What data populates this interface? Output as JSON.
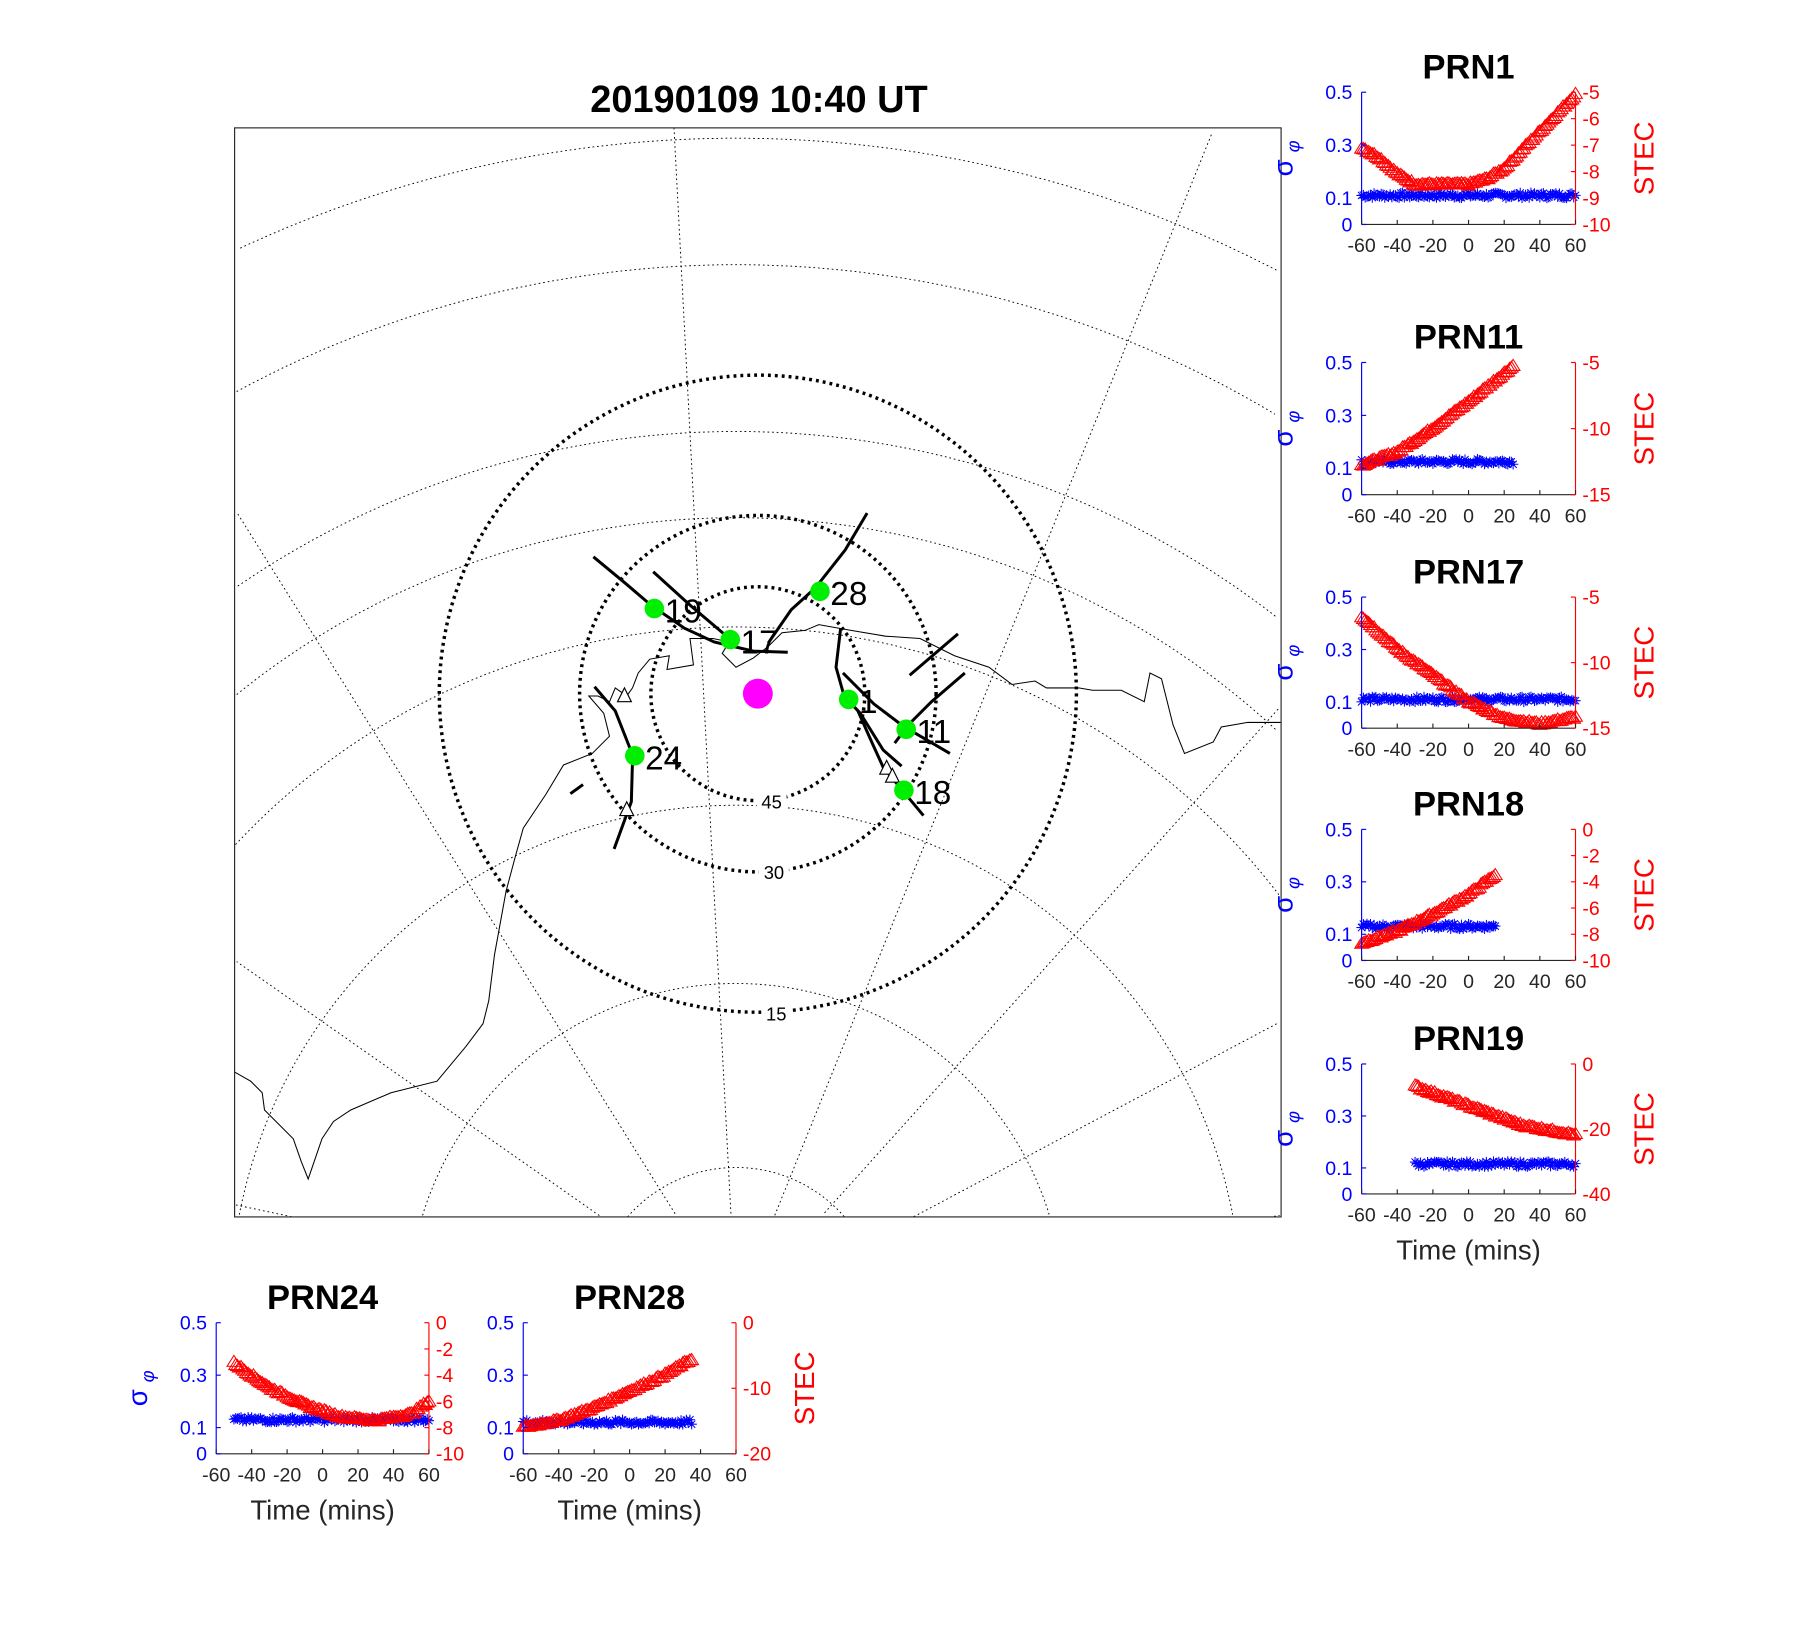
{
  "title": "20190109 10:40 UT",
  "map": {
    "elevation_labels": [
      "45",
      "30",
      "15"
    ],
    "satellites": [
      {
        "prn": "1"
      },
      {
        "prn": "11"
      },
      {
        "prn": "17"
      },
      {
        "prn": "18"
      },
      {
        "prn": "19"
      },
      {
        "prn": "24"
      },
      {
        "prn": "28"
      }
    ],
    "colors": {
      "satellite": "#00ee00",
      "station": "#ff00ff",
      "track": "#000000"
    }
  },
  "chart_data": [
    {
      "type": "line",
      "title": "PRN1",
      "xlabel": "",
      "left_ylabel": {
        "sigma": "σ",
        "phi": "φ"
      },
      "right_ylabel": "STEC",
      "xlim": [
        -60,
        60
      ],
      "xticks": [
        "-60",
        "-40",
        "-20",
        "0",
        "20",
        "40",
        "60"
      ],
      "xtick_values": [
        -60,
        -40,
        -20,
        0,
        20,
        40,
        60
      ],
      "left_ylim": [
        0,
        0.5
      ],
      "left_ticks": [
        "0",
        "0.1",
        "0.3",
        "0.5"
      ],
      "left_tick_values": [
        0,
        0.1,
        0.3,
        0.5
      ],
      "right_ylim": [
        -10,
        -5
      ],
      "right_ticks": [
        "-5",
        "-6",
        "-7",
        "-8",
        "-9",
        "-10"
      ],
      "right_tick_values": [
        -5,
        -6,
        -7,
        -8,
        -9,
        -10
      ],
      "sigma": {
        "t_range": [
          -60,
          60
        ],
        "value": 0.11
      },
      "stec": [
        [
          -60,
          -7.1
        ],
        [
          -50,
          -7.5
        ],
        [
          -40,
          -8.1
        ],
        [
          -30,
          -8.5
        ],
        [
          -20,
          -8.5
        ],
        [
          0,
          -8.5
        ],
        [
          10,
          -8.3
        ],
        [
          20,
          -7.9
        ],
        [
          30,
          -7.2
        ],
        [
          40,
          -6.5
        ],
        [
          50,
          -5.8
        ],
        [
          60,
          -5.1
        ]
      ]
    },
    {
      "type": "line",
      "title": "PRN11",
      "xlabel": "",
      "left_ylabel": {
        "sigma": "σ",
        "phi": "φ"
      },
      "right_ylabel": "STEC",
      "xlim": [
        -60,
        60
      ],
      "xticks": [
        "-60",
        "-40",
        "-20",
        "0",
        "20",
        "40",
        "60"
      ],
      "xtick_values": [
        -60,
        -40,
        -20,
        0,
        20,
        40,
        60
      ],
      "left_ylim": [
        0,
        0.5
      ],
      "left_ticks": [
        "0",
        "0.1",
        "0.3",
        "0.5"
      ],
      "left_tick_values": [
        0,
        0.1,
        0.3,
        0.5
      ],
      "right_ylim": [
        -15,
        -5
      ],
      "right_ticks": [
        "-5",
        "-10",
        "-15"
      ],
      "right_tick_values": [
        -5,
        -10,
        -15
      ],
      "sigma": {
        "t_range": [
          -60,
          25
        ],
        "value": 0.125
      },
      "stec": [
        [
          -60,
          -12.8
        ],
        [
          -40,
          -11.8
        ],
        [
          -20,
          -10
        ],
        [
          0,
          -8
        ],
        [
          25,
          -5.3
        ]
      ]
    },
    {
      "type": "line",
      "title": "PRN17",
      "xlabel": "",
      "left_ylabel": {
        "sigma": "σ",
        "phi": "φ"
      },
      "right_ylabel": "STEC",
      "xlim": [
        -60,
        60
      ],
      "xticks": [
        "-60",
        "-40",
        "-20",
        "0",
        "20",
        "40",
        "60"
      ],
      "xtick_values": [
        -60,
        -40,
        -20,
        0,
        20,
        40,
        60
      ],
      "left_ylim": [
        0,
        0.5
      ],
      "left_ticks": [
        "0",
        "0.1",
        "0.3",
        "0.5"
      ],
      "left_tick_values": [
        0,
        0.1,
        0.3,
        0.5
      ],
      "right_ylim": [
        -15,
        -5
      ],
      "right_ticks": [
        "-5",
        "-10",
        "-15"
      ],
      "right_tick_values": [
        -5,
        -10,
        -15
      ],
      "sigma": {
        "t_range": [
          -60,
          60
        ],
        "value": 0.11
      },
      "stec": [
        [
          -60,
          -6.5
        ],
        [
          -40,
          -9
        ],
        [
          -20,
          -11
        ],
        [
          0,
          -13
        ],
        [
          20,
          -14.3
        ],
        [
          40,
          -14.7
        ],
        [
          60,
          -14.2
        ]
      ]
    },
    {
      "type": "line",
      "title": "PRN18",
      "xlabel": "",
      "left_ylabel": {
        "sigma": "σ",
        "phi": "φ"
      },
      "right_ylabel": "STEC",
      "xlim": [
        -60,
        60
      ],
      "xticks": [
        "-60",
        "-40",
        "-20",
        "0",
        "20",
        "40",
        "60"
      ],
      "xtick_values": [
        -60,
        -40,
        -20,
        0,
        20,
        40,
        60
      ],
      "left_ylim": [
        0,
        0.5
      ],
      "left_ticks": [
        "0",
        "0.1",
        "0.3",
        "0.5"
      ],
      "left_tick_values": [
        0,
        0.1,
        0.3,
        0.5
      ],
      "right_ylim": [
        -10,
        0
      ],
      "right_ticks": [
        "0",
        "-2",
        "-4",
        "-6",
        "-8",
        "-10"
      ],
      "right_tick_values": [
        0,
        -2,
        -4,
        -6,
        -8,
        -10
      ],
      "sigma": {
        "t_range": [
          -60,
          15
        ],
        "value": 0.13
      },
      "stec": [
        [
          -60,
          -8.7
        ],
        [
          -40,
          -7.8
        ],
        [
          -20,
          -6.5
        ],
        [
          0,
          -5
        ],
        [
          15,
          -3.5
        ]
      ]
    },
    {
      "type": "line",
      "title": "PRN19",
      "xlabel": "Time (mins)",
      "left_ylabel": {
        "sigma": "σ",
        "phi": "φ"
      },
      "right_ylabel": "STEC",
      "xlim": [
        -60,
        60
      ],
      "xticks": [
        "-60",
        "-40",
        "-20",
        "0",
        "20",
        "40",
        "60"
      ],
      "xtick_values": [
        -60,
        -40,
        -20,
        0,
        20,
        40,
        60
      ],
      "left_ylim": [
        0,
        0.5
      ],
      "left_ticks": [
        "0",
        "0.1",
        "0.3",
        "0.5"
      ],
      "left_tick_values": [
        0,
        0.1,
        0.3,
        0.5
      ],
      "right_ylim": [
        -40,
        0
      ],
      "right_ticks": [
        "0",
        "-20",
        "-40"
      ],
      "right_tick_values": [
        0,
        -20,
        -40
      ],
      "sigma": {
        "t_range": [
          -30,
          60
        ],
        "value": 0.115
      },
      "stec": [
        [
          -30,
          -7
        ],
        [
          0,
          -13
        ],
        [
          30,
          -19
        ],
        [
          60,
          -22
        ]
      ]
    },
    {
      "type": "line",
      "title": "PRN24",
      "xlabel": "Time (mins)",
      "left_ylabel": {
        "sigma": "σ",
        "phi": "φ"
      },
      "right_ylabel": "",
      "xlim": [
        -60,
        60
      ],
      "xticks": [
        "-60",
        "-40",
        "-20",
        "0",
        "20",
        "40",
        "60"
      ],
      "xtick_values": [
        -60,
        -40,
        -20,
        0,
        20,
        40,
        60
      ],
      "left_ylim": [
        0,
        0.5
      ],
      "left_ticks": [
        "0",
        "0.1",
        "0.3",
        "0.5"
      ],
      "left_tick_values": [
        0,
        0.1,
        0.3,
        0.5
      ],
      "right_ylim": [
        -10,
        0
      ],
      "right_ticks": [
        "0",
        "-2",
        "-4",
        "-6",
        "-8",
        "-10"
      ],
      "right_tick_values": [
        0,
        -2,
        -4,
        -6,
        -8,
        -10
      ],
      "sigma": {
        "t_range": [
          -50,
          60
        ],
        "value": 0.13
      },
      "stec": [
        [
          -50,
          -3.1
        ],
        [
          -30,
          -5
        ],
        [
          -10,
          -6.3
        ],
        [
          10,
          -7.2
        ],
        [
          30,
          -7.5
        ],
        [
          50,
          -7
        ],
        [
          60,
          -6
        ]
      ]
    },
    {
      "type": "line",
      "title": "PRN28",
      "xlabel": "Time (mins)",
      "left_ylabel": null,
      "right_ylabel": "STEC",
      "xlim": [
        -60,
        60
      ],
      "xticks": [
        "-60",
        "-40",
        "-20",
        "0",
        "20",
        "40",
        "60"
      ],
      "xtick_values": [
        -60,
        -40,
        -20,
        0,
        20,
        40,
        60
      ],
      "left_ylim": [
        0,
        0.5
      ],
      "left_ticks": [
        "0",
        "0.1",
        "0.3",
        "0.5"
      ],
      "left_tick_values": [
        0,
        0.1,
        0.3,
        0.5
      ],
      "right_ylim": [
        -20,
        0
      ],
      "right_ticks": [
        "0",
        "-10",
        "-20"
      ],
      "right_tick_values": [
        0,
        -10,
        -20
      ],
      "sigma": {
        "t_range": [
          -60,
          35
        ],
        "value": 0.12
      },
      "stec": [
        [
          -60,
          -16
        ],
        [
          -40,
          -15
        ],
        [
          -20,
          -13
        ],
        [
          0,
          -10.5
        ],
        [
          20,
          -8
        ],
        [
          35,
          -5.6
        ]
      ]
    }
  ]
}
